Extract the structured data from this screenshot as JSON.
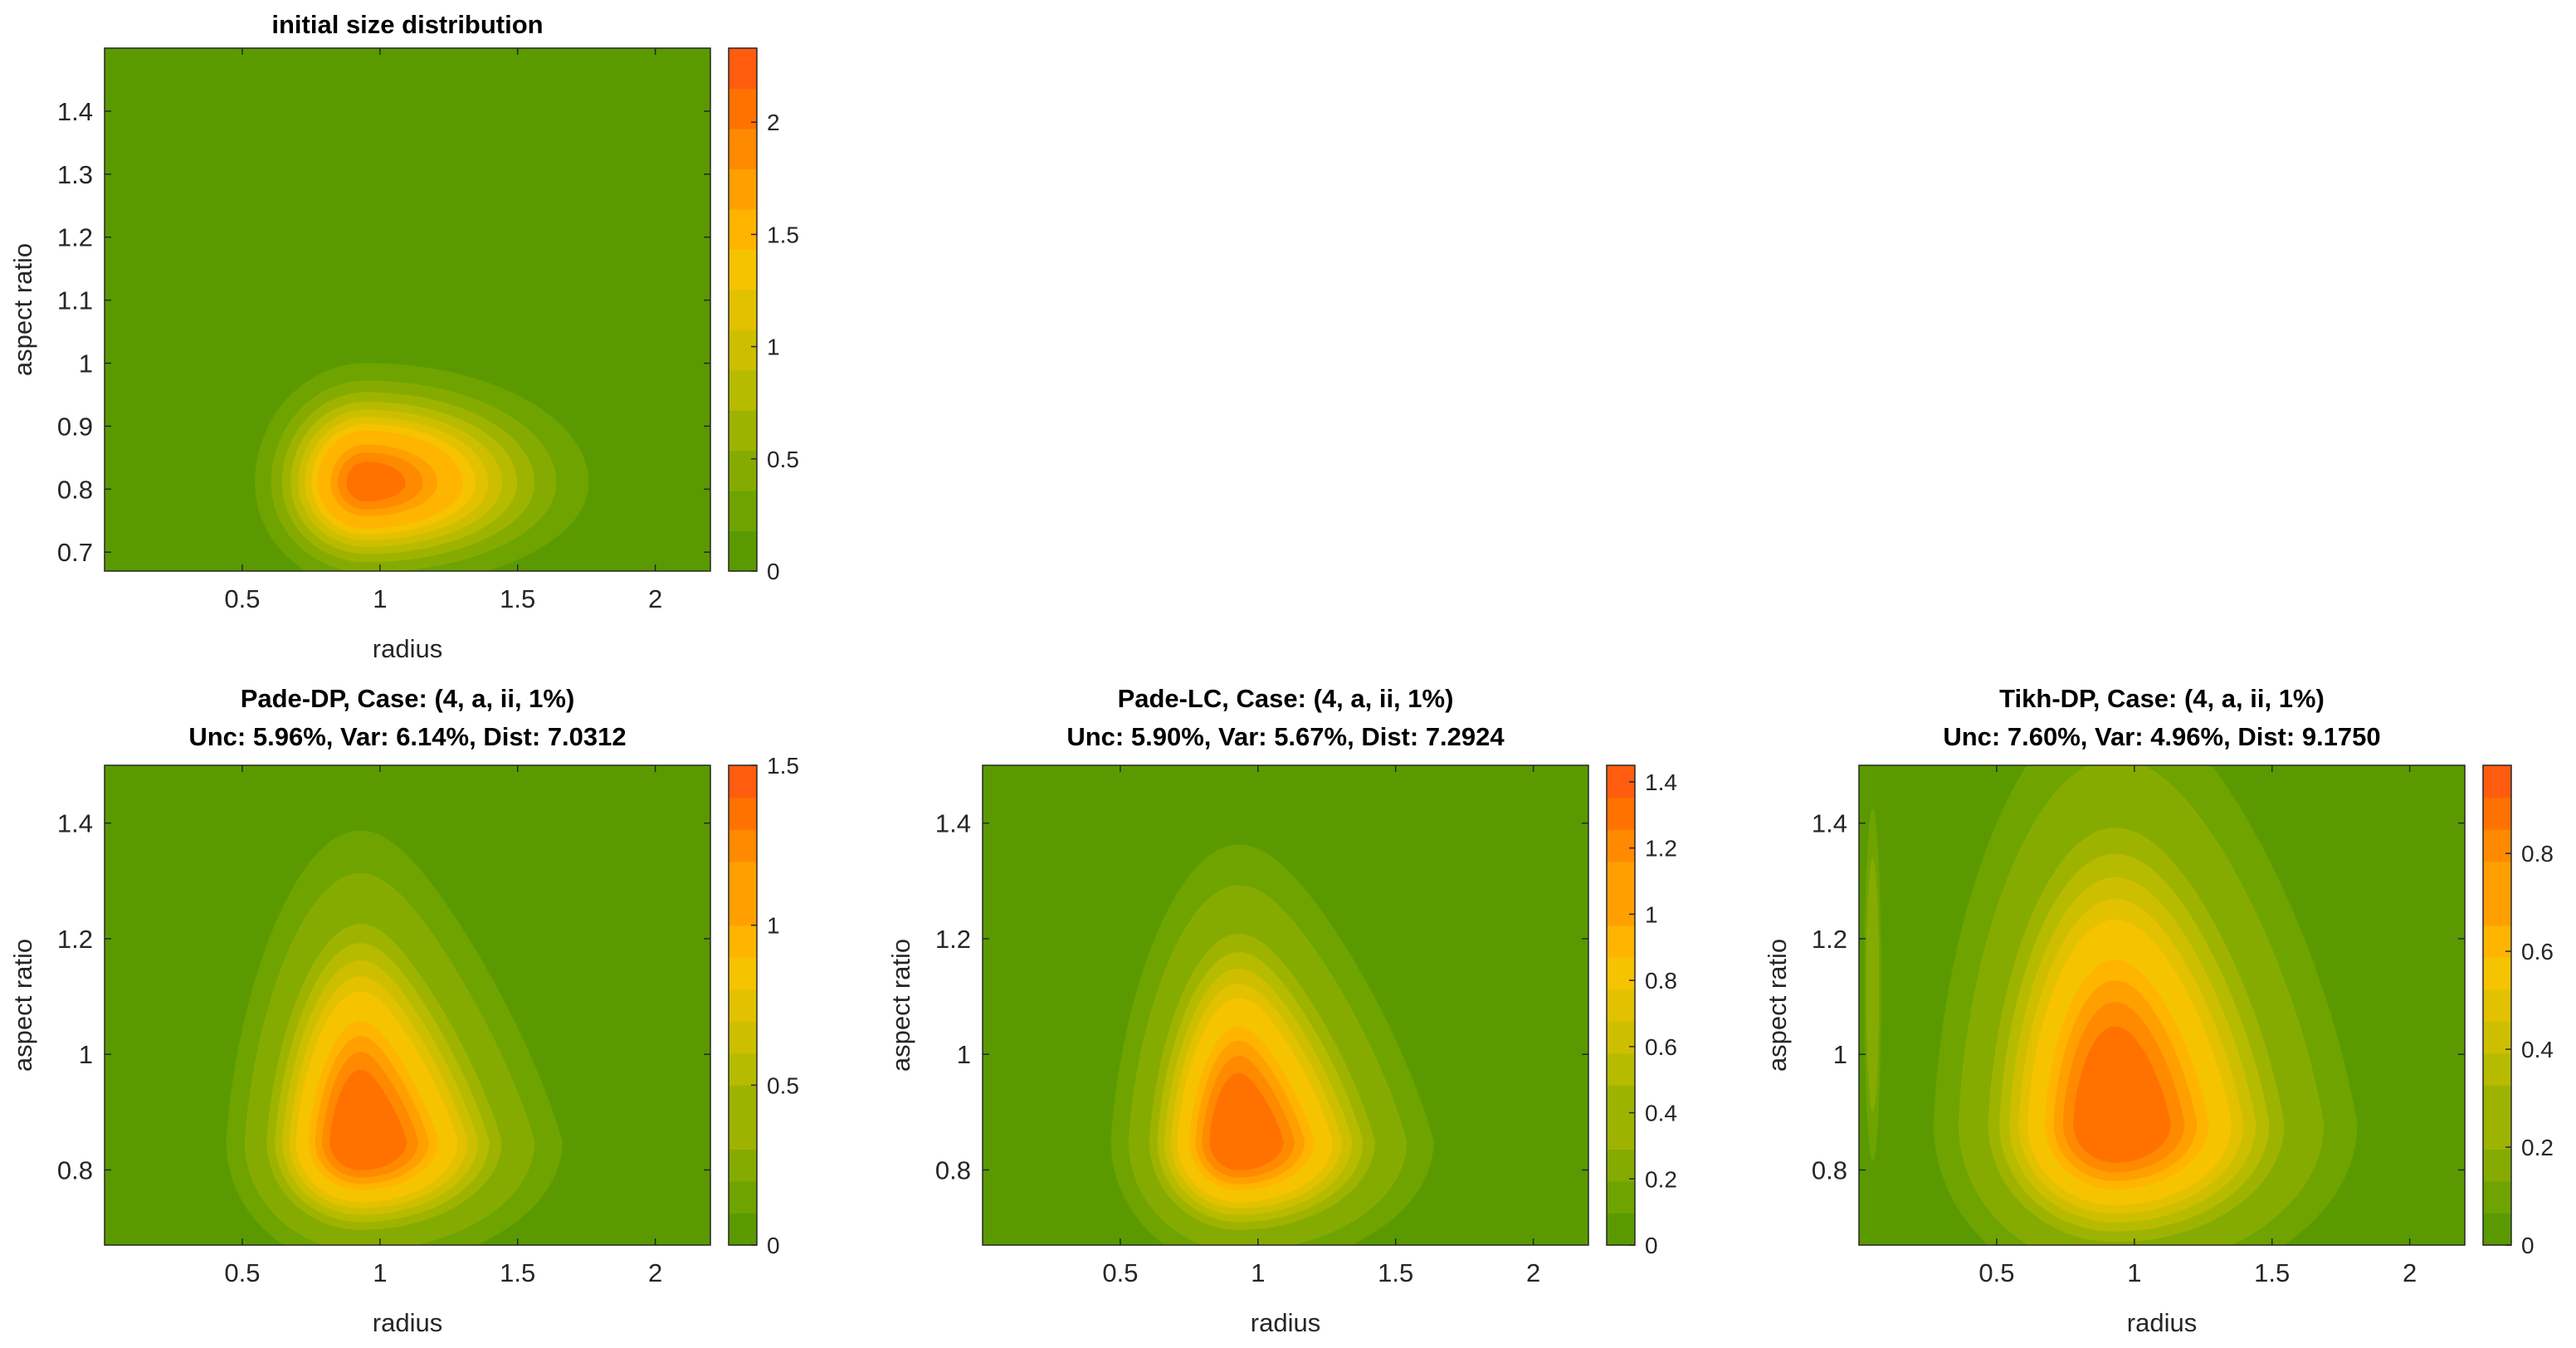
{
  "colors": {
    "background_green": "#5a9a00",
    "ramp": [
      "#5a9a00",
      "#6ea300",
      "#86ab00",
      "#9eb300",
      "#b6bb00",
      "#cdbf00",
      "#e2c100",
      "#f6c300",
      "#ffb500",
      "#ffa000",
      "#ff8a00",
      "#ff7200",
      "#ff5c10"
    ]
  },
  "chart_data": [
    {
      "type": "heatmap",
      "title": "initial size distribution",
      "subtitle": "",
      "xlabel": "radius",
      "ylabel": "aspect ratio",
      "xlim": [
        0,
        2.2
      ],
      "ylim": [
        0.67,
        1.5
      ],
      "xticks": [
        0.5,
        1,
        1.5,
        2
      ],
      "xtick_labels": [
        "0.5",
        "1",
        "1.5",
        "2"
      ],
      "yticks": [
        0.7,
        0.8,
        0.9,
        1.0,
        1.1,
        1.2,
        1.3,
        1.4
      ],
      "ytick_labels": [
        "0.7",
        "0.8",
        "0.9",
        "1",
        "1.1",
        "1.2",
        "1.3",
        "1.4"
      ],
      "colorbar": {
        "min": 0,
        "max": 2.33,
        "ticks": [
          0,
          0.5,
          1,
          1.5,
          2
        ],
        "tick_labels": [
          "0",
          "0.5",
          "1",
          "1.5",
          "2"
        ]
      },
      "peak": {
        "radius": 0.95,
        "aspect_ratio": 0.81,
        "value": 2.33
      },
      "spread": {
        "radius_left": 0.17,
        "radius_right": 0.34,
        "aspect_below": 0.07,
        "aspect_above": 0.08
      },
      "levels": 12
    },
    {
      "type": "heatmap",
      "title": "Pade-DP, Case: (4, a, ii, 1%)",
      "subtitle": "Unc: 5.96%, Var: 6.14%, Dist: 7.0312",
      "xlabel": "radius",
      "ylabel": "aspect ratio",
      "xlim": [
        0,
        2.2
      ],
      "ylim": [
        0.67,
        1.5
      ],
      "xticks": [
        0.5,
        1,
        1.5,
        2
      ],
      "xtick_labels": [
        "0.5",
        "1",
        "1.5",
        "2"
      ],
      "yticks": [
        0.8,
        1.0,
        1.2,
        1.4
      ],
      "ytick_labels": [
        "0.8",
        "1",
        "1.2",
        "1.4"
      ],
      "colorbar": {
        "min": 0,
        "max": 1.5,
        "ticks": [
          0,
          0.5,
          1,
          1.5
        ],
        "tick_labels": [
          "0",
          "0.5",
          "1",
          "1.5"
        ]
      },
      "peak": {
        "radius": 0.93,
        "aspect_ratio": 0.85,
        "value": 1.5
      },
      "spread": {
        "radius_left": 0.2,
        "radius_right": 0.3,
        "aspect_below": 0.09,
        "aspect_above": 0.22
      },
      "skew": -0.45,
      "levels": 14
    },
    {
      "type": "heatmap",
      "title": "Pade-LC, Case: (4, a, ii, 1%)",
      "subtitle": "Unc: 5.90%, Var: 5.67%, Dist: 7.2924",
      "xlabel": "radius",
      "ylabel": "aspect ratio",
      "xlim": [
        0,
        2.2
      ],
      "ylim": [
        0.67,
        1.5
      ],
      "xticks": [
        0.5,
        1,
        1.5,
        2
      ],
      "xtick_labels": [
        "0.5",
        "1",
        "1.5",
        "2"
      ],
      "yticks": [
        0.8,
        1.0,
        1.2,
        1.4
      ],
      "ytick_labels": [
        "0.8",
        "1",
        "1.2",
        "1.4"
      ],
      "colorbar": {
        "min": 0,
        "max": 1.45,
        "ticks": [
          0,
          0.2,
          0.4,
          0.6,
          0.8,
          1,
          1.2,
          1.4
        ],
        "tick_labels": [
          "0",
          "0.2",
          "0.4",
          "0.6",
          "0.8",
          "1",
          "1.2",
          "1.4"
        ]
      },
      "peak": {
        "radius": 0.93,
        "aspect_ratio": 0.85,
        "value": 1.45
      },
      "spread": {
        "radius_left": 0.19,
        "radius_right": 0.29,
        "aspect_below": 0.09,
        "aspect_above": 0.21
      },
      "skew": -0.42,
      "levels": 14
    },
    {
      "type": "heatmap",
      "title": "Tikh-DP, Case: (4, a, ii, 1%)",
      "subtitle": "Unc: 7.60%, Var: 4.96%, Dist: 9.1750",
      "xlabel": "radius",
      "ylabel": "aspect ratio",
      "xlim": [
        0,
        2.2
      ],
      "ylim": [
        0.67,
        1.5
      ],
      "xticks": [
        0.5,
        1,
        1.5,
        2
      ],
      "xtick_labels": [
        "0.5",
        "1",
        "1.5",
        "2"
      ],
      "yticks": [
        0.8,
        1.0,
        1.2,
        1.4
      ],
      "ytick_labels": [
        "0.8",
        "1",
        "1.2",
        "1.4"
      ],
      "colorbar": {
        "min": 0,
        "max": 0.98,
        "ticks": [
          0,
          0.2,
          0.4,
          0.6,
          0.8
        ],
        "tick_labels": [
          "0",
          "0.2",
          "0.4",
          "0.6",
          "0.8"
        ]
      },
      "peak": {
        "radius": 0.93,
        "aspect_ratio": 0.88,
        "value": 0.98
      },
      "spread": {
        "radius_left": 0.27,
        "radius_right": 0.36,
        "aspect_below": 0.12,
        "aspect_above": 0.3
      },
      "skew": -0.3,
      "edge_ridge": {
        "radius": 0.05,
        "value": 0.15
      },
      "levels": 14
    }
  ]
}
